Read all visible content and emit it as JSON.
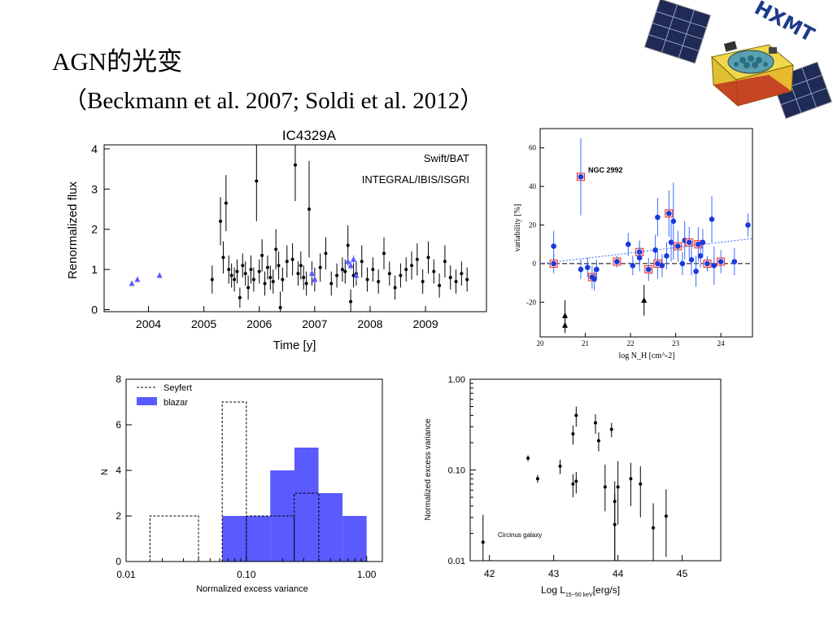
{
  "slide": {
    "title_line1": "AGN的光变",
    "title_line2": "（Beckmann et al. 2007; Soldi et al. 2012）",
    "logo_text": "HXMT"
  },
  "colors": {
    "blue": "#5a5aff",
    "black": "#000000",
    "red": "#e03030",
    "dotblue": "#1a3adb"
  },
  "chart_data": [
    {
      "id": "lightcurve",
      "type": "scatter",
      "title": "IC4329A",
      "xlabel": "Time [y]",
      "ylabel": "Renormalized flux",
      "xlim": [
        2003.2,
        2010.1
      ],
      "ylim": [
        -0.05,
        4.1
      ],
      "xticks": [
        2004,
        2005,
        2006,
        2007,
        2008,
        2009
      ],
      "yticks": [
        0,
        1,
        2,
        3,
        4
      ],
      "legend": [
        "Swift/BAT",
        "INTEGRAL/IBIS/ISGRI"
      ],
      "series": [
        {
          "name": "Swift/BAT",
          "points": [
            [
              2005.15,
              0.75,
              0.35
            ],
            [
              2005.3,
              2.2,
              0.6
            ],
            [
              2005.35,
              1.3,
              0.4
            ],
            [
              2005.4,
              2.65,
              0.7
            ],
            [
              2005.45,
              1.0,
              0.35
            ],
            [
              2005.5,
              0.85,
              0.3
            ],
            [
              2005.55,
              0.75,
              0.3
            ],
            [
              2005.6,
              0.95,
              0.3
            ],
            [
              2005.65,
              0.3,
              0.25
            ],
            [
              2005.7,
              1.1,
              0.3
            ],
            [
              2005.75,
              0.9,
              0.3
            ],
            [
              2005.8,
              0.55,
              0.3
            ],
            [
              2005.85,
              1.0,
              0.35
            ],
            [
              2005.9,
              0.75,
              0.3
            ],
            [
              2005.95,
              3.2,
              1.0
            ],
            [
              2006.0,
              0.95,
              0.3
            ],
            [
              2006.05,
              1.35,
              0.4
            ],
            [
              2006.1,
              0.65,
              0.3
            ],
            [
              2006.15,
              1.05,
              0.3
            ],
            [
              2006.2,
              0.8,
              0.3
            ],
            [
              2006.25,
              0.7,
              0.3
            ],
            [
              2006.3,
              1.5,
              0.5
            ],
            [
              2006.35,
              1.1,
              0.35
            ],
            [
              2006.38,
              0.05,
              0.4
            ],
            [
              2006.42,
              0.75,
              0.3
            ],
            [
              2006.5,
              1.2,
              0.4
            ],
            [
              2006.6,
              1.25,
              0.4
            ],
            [
              2006.65,
              3.6,
              0.9
            ],
            [
              2006.7,
              0.9,
              0.3
            ],
            [
              2006.75,
              1.1,
              0.35
            ],
            [
              2006.8,
              0.8,
              0.3
            ],
            [
              2006.85,
              0.65,
              0.3
            ],
            [
              2006.9,
              2.5,
              1.2
            ],
            [
              2006.95,
              0.9,
              0.3
            ],
            [
              2007.0,
              0.75,
              0.3
            ],
            [
              2007.1,
              1.05,
              0.35
            ],
            [
              2007.2,
              1.4,
              0.4
            ],
            [
              2007.3,
              0.65,
              0.3
            ],
            [
              2007.4,
              0.85,
              0.3
            ],
            [
              2007.5,
              1.0,
              0.3
            ],
            [
              2007.55,
              0.95,
              0.3
            ],
            [
              2007.6,
              1.6,
              0.5
            ],
            [
              2007.65,
              0.2,
              0.3
            ],
            [
              2007.7,
              0.85,
              0.3
            ],
            [
              2007.75,
              0.9,
              0.3
            ],
            [
              2007.85,
              1.2,
              0.4
            ],
            [
              2007.95,
              0.75,
              0.3
            ],
            [
              2008.05,
              1.0,
              0.3
            ],
            [
              2008.15,
              0.7,
              0.3
            ],
            [
              2008.25,
              1.4,
              0.4
            ],
            [
              2008.35,
              0.9,
              0.3
            ],
            [
              2008.45,
              0.55,
              0.3
            ],
            [
              2008.55,
              0.85,
              0.3
            ],
            [
              2008.65,
              1.0,
              0.3
            ],
            [
              2008.75,
              1.1,
              0.35
            ],
            [
              2008.85,
              1.25,
              0.4
            ],
            [
              2008.95,
              0.7,
              0.3
            ],
            [
              2009.05,
              1.3,
              0.4
            ],
            [
              2009.15,
              0.95,
              0.3
            ],
            [
              2009.25,
              0.6,
              0.3
            ],
            [
              2009.35,
              1.2,
              0.4
            ],
            [
              2009.45,
              0.8,
              0.3
            ],
            [
              2009.55,
              0.7,
              0.3
            ],
            [
              2009.65,
              0.9,
              0.3
            ],
            [
              2009.75,
              0.75,
              0.3
            ]
          ]
        },
        {
          "name": "INTEGRAL/IBIS/ISGRI",
          "points": [
            [
              2003.7,
              0.65,
              0.05
            ],
            [
              2003.8,
              0.75,
              0.05
            ],
            [
              2004.2,
              0.85,
              0.05
            ],
            [
              2006.95,
              0.9,
              0.1
            ],
            [
              2007.0,
              0.75,
              0.1
            ],
            [
              2007.6,
              1.2,
              0.1
            ],
            [
              2007.65,
              1.1,
              0.1
            ],
            [
              2007.7,
              1.25,
              0.1
            ],
            [
              2007.75,
              0.85,
              0.1
            ]
          ]
        }
      ]
    },
    {
      "id": "variability_nh",
      "type": "scatter",
      "xlabel": "log N_H [cm^-2]",
      "ylabel": "variability [%]",
      "xlim": [
        20,
        24.7
      ],
      "ylim": [
        -38,
        70
      ],
      "xticks": [
        20,
        21,
        22,
        23,
        24
      ],
      "yticks": [
        -20,
        0,
        20,
        40,
        60
      ],
      "annotation": "NGC 2992",
      "points": [
        [
          20.3,
          9,
          8
        ],
        [
          20.3,
          0,
          5
        ],
        [
          20.55,
          -27,
          8
        ],
        [
          20.55,
          -32,
          4
        ],
        [
          20.9,
          45,
          20
        ],
        [
          20.9,
          -3,
          5
        ],
        [
          21.05,
          -2,
          5
        ],
        [
          21.15,
          -7,
          6
        ],
        [
          21.2,
          -8,
          6
        ],
        [
          21.25,
          -3,
          5
        ],
        [
          21.7,
          1,
          3
        ],
        [
          21.95,
          10,
          6
        ],
        [
          22.05,
          -1,
          5
        ],
        [
          22.2,
          6,
          6
        ],
        [
          22.2,
          3,
          7
        ],
        [
          22.3,
          -19,
          8
        ],
        [
          22.4,
          -3,
          6
        ],
        [
          22.55,
          7,
          8
        ],
        [
          22.6,
          24,
          10
        ],
        [
          22.6,
          0,
          8
        ],
        [
          22.7,
          -1,
          6
        ],
        [
          22.8,
          4,
          7
        ],
        [
          22.85,
          26,
          12
        ],
        [
          22.9,
          11,
          10
        ],
        [
          22.95,
          22,
          20
        ],
        [
          23.05,
          9,
          8
        ],
        [
          23.15,
          0,
          6
        ],
        [
          23.2,
          12,
          10
        ],
        [
          23.3,
          11,
          8
        ],
        [
          23.35,
          2,
          8
        ],
        [
          23.45,
          -4,
          8
        ],
        [
          23.5,
          10,
          9
        ],
        [
          23.55,
          4,
          6
        ],
        [
          23.6,
          11,
          7
        ],
        [
          23.7,
          0,
          4
        ],
        [
          23.8,
          23,
          12
        ],
        [
          23.85,
          -1,
          10
        ],
        [
          24.0,
          1,
          6
        ],
        [
          24.3,
          1,
          7
        ],
        [
          24.6,
          20,
          6
        ]
      ],
      "fit_line": [
        [
          20,
          0
        ],
        [
          24.7,
          13
        ]
      ]
    },
    {
      "id": "histogram",
      "type": "bar",
      "xlabel": "Normalized excess variance",
      "ylabel": "N",
      "xlim": [
        0.01,
        1.35
      ],
      "ylim": [
        0,
        8
      ],
      "xticks": [
        "0.01",
        "0.10",
        "1.00"
      ],
      "yticks": [
        0,
        2,
        4,
        6,
        8
      ],
      "legend": [
        "Seyfert",
        "blazar"
      ],
      "series": [
        {
          "name": "Seyfert",
          "bins": [
            [
              0.0158,
              0.04,
              2
            ],
            [
              0.063,
              0.1,
              7
            ],
            [
              0.1,
              0.25,
              2
            ],
            [
              0.25,
              0.4,
              3
            ],
            [
              0.4,
              0.45,
              0
            ]
          ]
        },
        {
          "name": "blazar",
          "bins": [
            [
              0.063,
              0.158,
              2
            ],
            [
              0.158,
              0.251,
              4
            ],
            [
              0.251,
              0.398,
              5
            ],
            [
              0.398,
              0.631,
              3
            ],
            [
              0.631,
              1.0,
              2
            ]
          ]
        }
      ]
    },
    {
      "id": "excess_lum",
      "type": "scatter",
      "xlabel": "Log L",
      "xlabel_sub": "15−50 keV",
      "xlabel_unit": "[erg/s]",
      "ylabel": "Normalized excess variance",
      "xlim": [
        41.7,
        45.6
      ],
      "ylim": [
        0.01,
        1.0
      ],
      "xticks": [
        42,
        43,
        44,
        45
      ],
      "yticks": [
        "0.01",
        "0.10",
        "1.00"
      ],
      "annotation": "Circinus galaxy",
      "points": [
        [
          41.9,
          0.016,
          0.006,
          0.016
        ],
        [
          42.6,
          0.135,
          0.01,
          0.01
        ],
        [
          42.75,
          0.08,
          0.008,
          0.008
        ],
        [
          43.1,
          0.11,
          0.02,
          0.02
        ],
        [
          43.3,
          0.25,
          0.06,
          0.06
        ],
        [
          43.3,
          0.07,
          0.02,
          0.02
        ],
        [
          43.35,
          0.4,
          0.1,
          0.1
        ],
        [
          43.35,
          0.075,
          0.02,
          0.02
        ],
        [
          43.65,
          0.33,
          0.08,
          0.08
        ],
        [
          43.7,
          0.21,
          0.05,
          0.05
        ],
        [
          43.8,
          0.065,
          0.03,
          0.05
        ],
        [
          43.9,
          0.28,
          0.05,
          0.05
        ],
        [
          43.95,
          0.045,
          0.035,
          0.03
        ],
        [
          43.95,
          0.025,
          0.015,
          0.03
        ],
        [
          44.0,
          0.065,
          0.04,
          0.06
        ],
        [
          44.2,
          0.08,
          0.04,
          0.04
        ],
        [
          44.35,
          0.07,
          0.04,
          0.04
        ],
        [
          44.55,
          0.023,
          0.013,
          0.02
        ],
        [
          44.75,
          0.031,
          0.02,
          0.03
        ]
      ]
    }
  ]
}
